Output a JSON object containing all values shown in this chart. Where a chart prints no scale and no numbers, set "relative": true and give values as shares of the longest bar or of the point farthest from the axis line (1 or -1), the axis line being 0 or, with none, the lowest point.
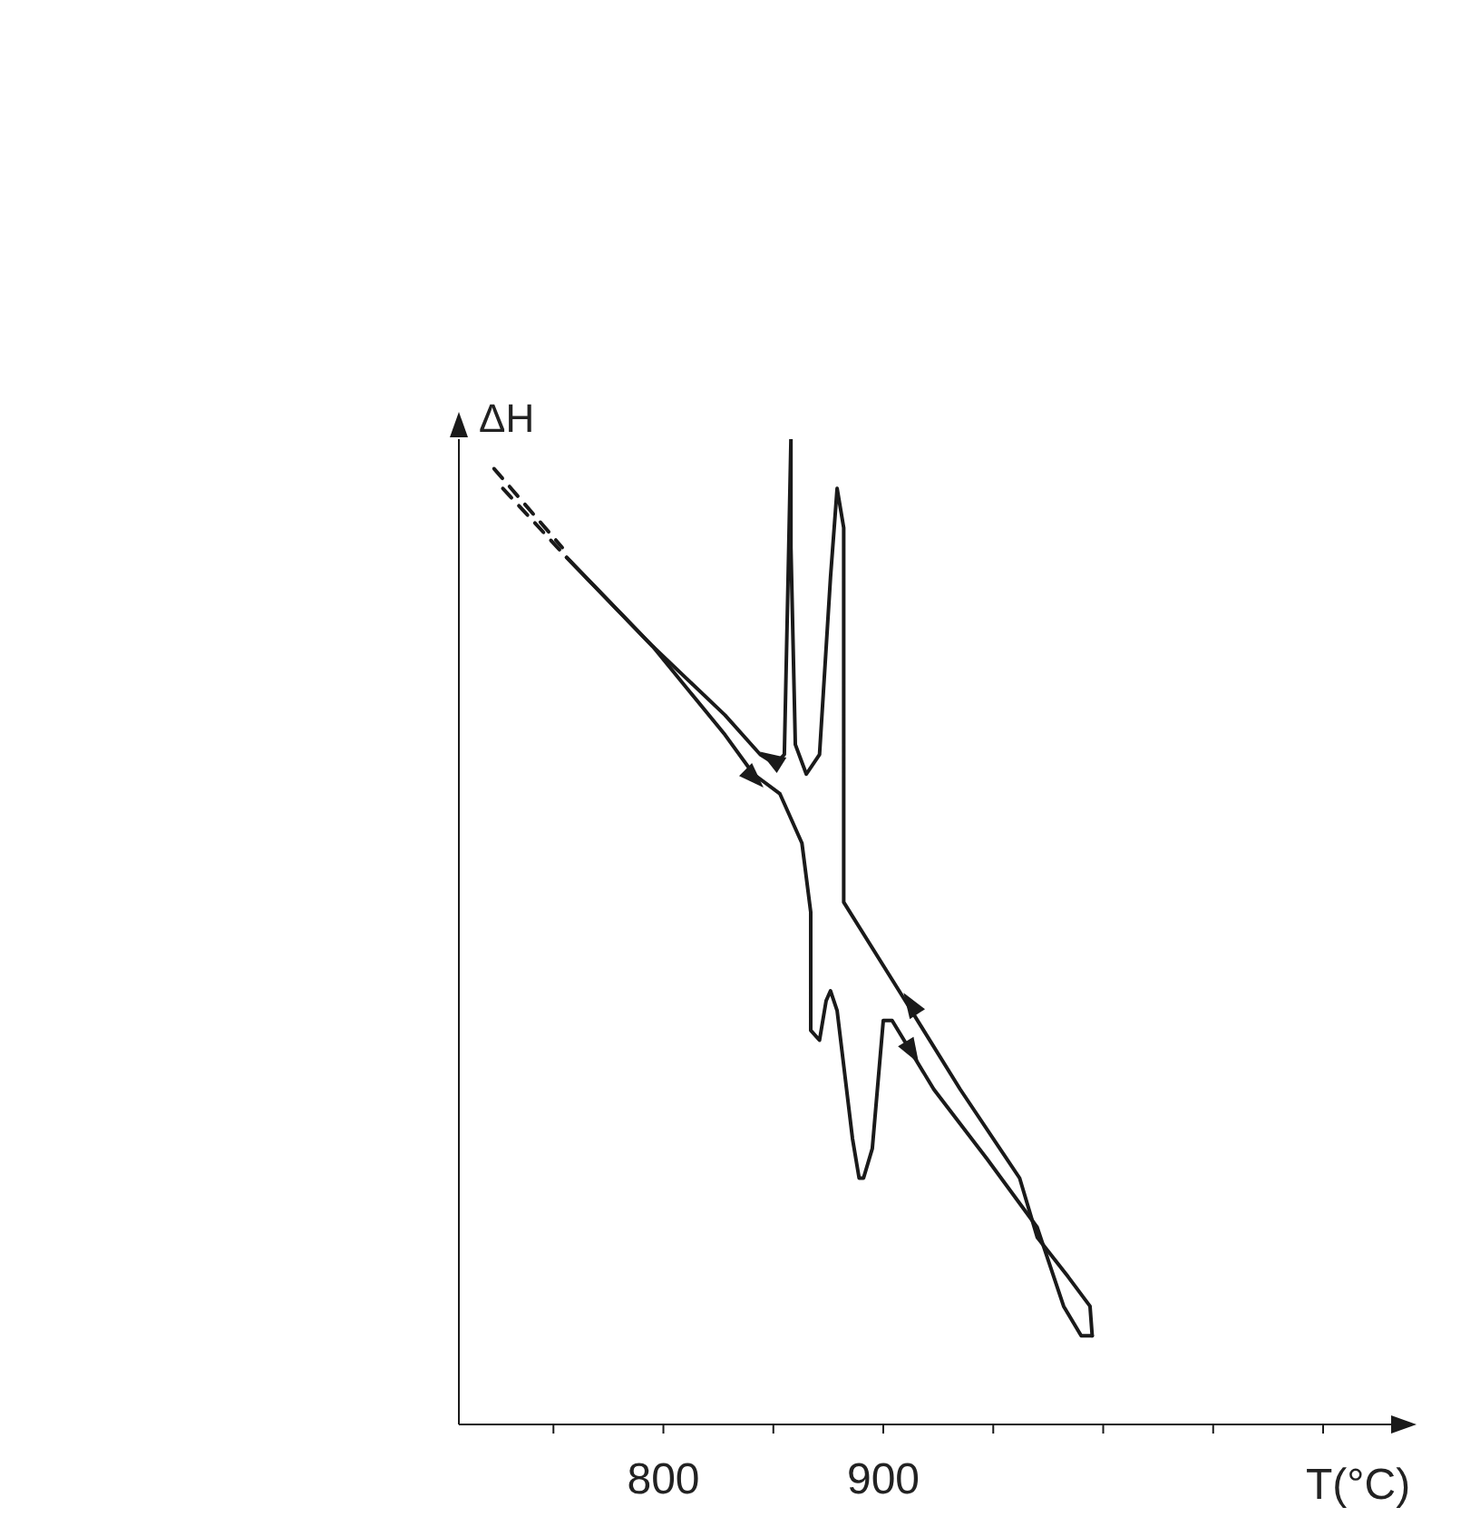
{
  "chart_data": {
    "type": "line",
    "relative": true,
    "ylabel": "ΔH",
    "xlabel": "T(°C)",
    "xlim": [
      707,
      1140
    ],
    "xticks": [
      {
        "value": 750,
        "label": null
      },
      800,
      {
        "value": 850,
        "label": null
      },
      900,
      {
        "value": 950,
        "label": null
      },
      {
        "value": 1000,
        "label": null
      },
      {
        "value": 1050,
        "label": null
      },
      {
        "value": 1100,
        "label": null
      }
    ],
    "marker": "none",
    "grid": false,
    "legend": false,
    "series": [
      {
        "color": "#1a1a1a",
        "x": [
          756,
          795,
          828,
          844,
          851,
          855,
          857,
          858,
          858,
          860,
          865,
          871,
          876,
          879,
          882,
          882,
          882,
          910,
          935,
          962,
          970,
          984,
          994,
          995
        ],
        "values": [
          0.88,
          0.79,
          0.72,
          0.68,
          0.67,
          0.68,
          0.89,
          1,
          0.89,
          0.69,
          0.66,
          0.68,
          0.86,
          0.95,
          0.91,
          0.71,
          0.53,
          0.43,
          0.34,
          0.25,
          0.19,
          0.15,
          0.12,
          0.09
        ]
      },
      {
        "color": "#1a1a1a",
        "x": [
          756,
          795,
          828,
          841,
          853,
          863,
          867,
          867,
          871,
          874,
          876,
          879,
          886,
          889,
          891,
          895,
          900,
          904,
          923,
          947,
          970,
          982,
          990,
          995
        ],
        "values": [
          0.88,
          0.79,
          0.7,
          0.66,
          0.64,
          0.59,
          0.52,
          0.4,
          0.39,
          0.43,
          0.44,
          0.42,
          0.29,
          0.25,
          0.25,
          0.28,
          0.41,
          0.41,
          0.34,
          0.27,
          0.2,
          0.12,
          0.09,
          0.09
        ]
      },
      {
        "color": "#1a1a1a",
        "line_style": "dashed",
        "x": [
          723,
          754
        ],
        "values": [
          0.97,
          0.89
        ]
      },
      {
        "color": "#1a1a1a",
        "line_style": "dashed",
        "x": [
          727,
          756
        ],
        "values": [
          0.95,
          0.88
        ]
      }
    ]
  }
}
